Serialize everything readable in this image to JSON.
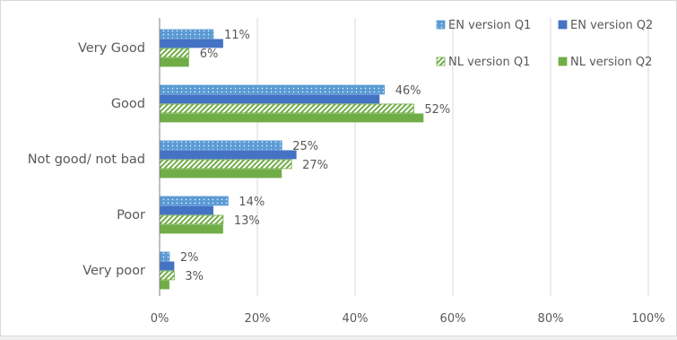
{
  "chart_data": {
    "type": "bar",
    "orientation": "horizontal",
    "categories": [
      "Very Good",
      "Good",
      "Not good/ not bad",
      "Poor",
      "Very poor"
    ],
    "series": [
      {
        "name": "EN version Q1",
        "values": [
          11,
          46,
          25,
          14,
          2
        ],
        "color": "#5b9bd5",
        "pattern": "dots",
        "labeled": true
      },
      {
        "name": "EN version Q2",
        "values": [
          13,
          45,
          28,
          11,
          3
        ],
        "color": "#4472c4",
        "pattern": "solid",
        "labeled": false
      },
      {
        "name": "NL version Q1",
        "values": [
          6,
          52,
          27,
          13,
          3
        ],
        "color": "#a9d18e",
        "pattern": "stripes",
        "labeled": true
      },
      {
        "name": "NL version Q2",
        "values": [
          6,
          54,
          25,
          13,
          2
        ],
        "color": "#70ad47",
        "pattern": "solid",
        "labeled": false
      }
    ],
    "xlim": [
      0,
      100
    ],
    "xticks": [
      "0%",
      "20%",
      "40%",
      "60%",
      "80%",
      "100%"
    ],
    "value_suffix": "%",
    "grid": "vertical",
    "legend_position": "top-right"
  }
}
